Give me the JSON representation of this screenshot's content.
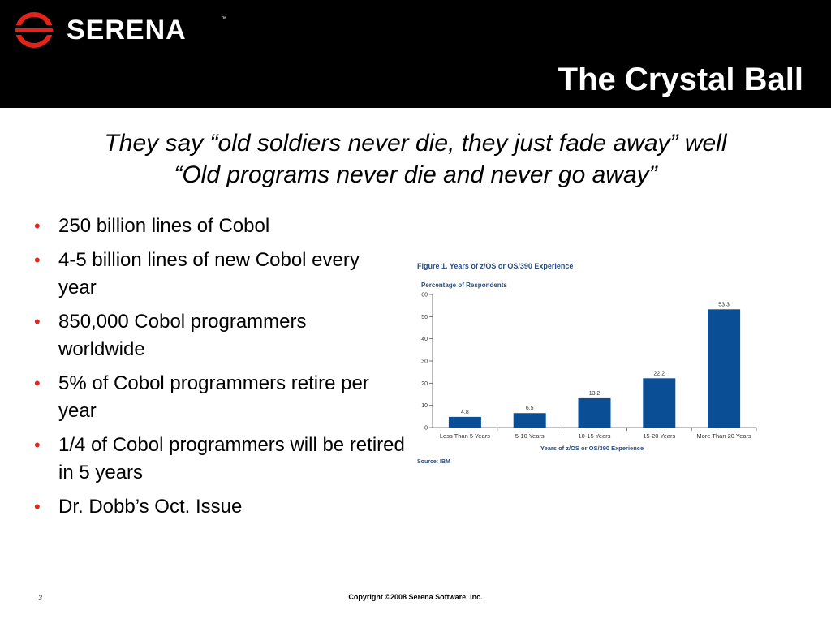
{
  "header": {
    "logo_text": "SERENA",
    "logo_tm": "™",
    "title": "The Crystal Ball"
  },
  "subtitle": {
    "line1": "They say “old soldiers never die, they just fade away” well",
    "line2": "“Old programs never die and never go away”"
  },
  "bullets": [
    "250 billion lines of Cobol",
    "4-5 billion lines of new Cobol every year",
    "850,000 Cobol programmers worldwide",
    "5% of Cobol programmers retire per year",
    "1/4 of Cobol programmers will be retired in 5 years",
    "Dr. Dobb’s Oct. Issue"
  ],
  "bullet_glyph": "•",
  "figure": {
    "title": "Figure 1. Years of z/OS or OS/390 Experience",
    "source": "Source: IBM"
  },
  "chart_data": {
    "type": "bar",
    "categories": [
      "Less Than 5 Years",
      "5-10 Years",
      "10-15 Years",
      "15-20 Years",
      "More Than 20 Years"
    ],
    "values": [
      4.8,
      6.5,
      13.2,
      22.2,
      53.3
    ],
    "value_labels": [
      "4.8",
      "6.5",
      "13.2",
      "22.2",
      "53.3"
    ],
    "ylabel": "Percentage of Respondents",
    "xlabel": "Years of z/OS or OS/390 Experience",
    "ylim": [
      0,
      60
    ],
    "yticks": [
      0,
      10,
      20,
      30,
      40,
      50,
      60
    ],
    "grid": false,
    "bar_color": "#0a4f96"
  },
  "footer": {
    "page_number": "3",
    "copyright": "Copyright ©2008 Serena Software, Inc."
  },
  "colors": {
    "header_bg": "#000000",
    "bullet_color": "#d9281f",
    "logo_red": "#e0241b"
  }
}
